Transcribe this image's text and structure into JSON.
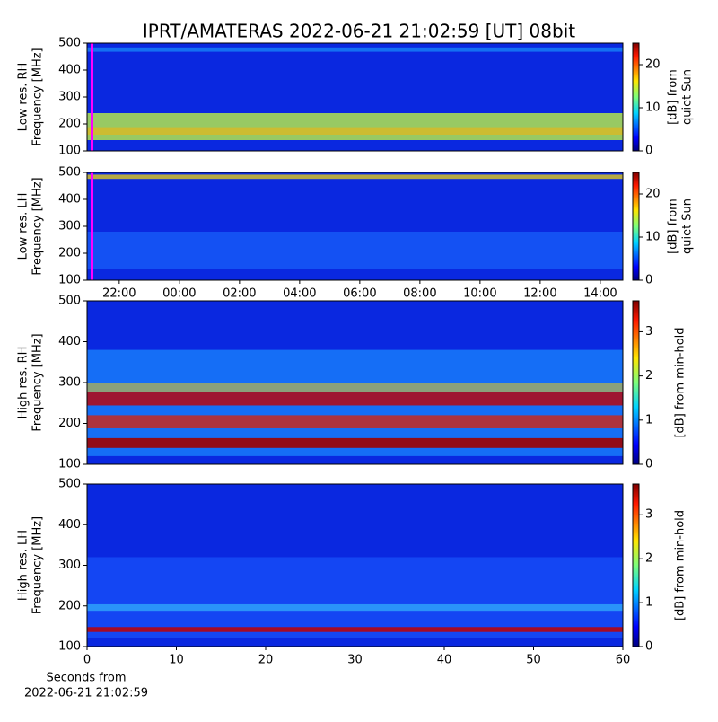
{
  "title": "IPRT/AMATERAS 2022-06-21 21:02:59 [UT]   08bit",
  "chart_data": [
    {
      "type": "spectrogram",
      "ylabel": [
        "Low res. RH",
        "Frequency [MHz]"
      ],
      "ylim": [
        100,
        500
      ],
      "yticks": [
        100,
        200,
        300,
        400,
        500
      ],
      "xlim": [
        20.93,
        38.75
      ],
      "clabel": [
        "[dB] from",
        "quiet Sun"
      ],
      "clim": [
        0,
        25
      ],
      "cticks": [
        0,
        10,
        20
      ]
    },
    {
      "type": "spectrogram",
      "ylabel": [
        "Low res. LH",
        "Frequency [MHz]"
      ],
      "ylim": [
        100,
        500
      ],
      "yticks": [
        100,
        200,
        300,
        400,
        500
      ],
      "xlim": [
        20.93,
        38.75
      ],
      "xticks": [
        {
          "value": 22,
          "label": "22:00"
        },
        {
          "value": 24,
          "label": "00:00"
        },
        {
          "value": 26,
          "label": "02:00"
        },
        {
          "value": 28,
          "label": "04:00"
        },
        {
          "value": 30,
          "label": "06:00"
        },
        {
          "value": 32,
          "label": "08:00"
        },
        {
          "value": 34,
          "label": "10:00"
        },
        {
          "value": 36,
          "label": "12:00"
        },
        {
          "value": 38,
          "label": "14:00"
        }
      ],
      "clabel": [
        "[dB] from",
        "quiet Sun"
      ],
      "clim": [
        0,
        25
      ],
      "cticks": [
        0,
        10,
        20
      ]
    },
    {
      "type": "spectrogram",
      "ylabel": [
        "High res. RH",
        "Frequency [MHz]"
      ],
      "ylim": [
        100,
        500
      ],
      "yticks": [
        100,
        200,
        300,
        400,
        500
      ],
      "xlim": [
        0,
        60
      ],
      "clabel": [
        "[dB] from min-hold"
      ],
      "clim": [
        0,
        3.7
      ],
      "cticks": [
        0,
        1,
        2,
        3
      ]
    },
    {
      "type": "spectrogram",
      "ylabel": [
        "High res. LH",
        "Frequency [MHz]"
      ],
      "ylim": [
        100,
        500
      ],
      "yticks": [
        100,
        200,
        300,
        400,
        500
      ],
      "xlim": [
        0,
        60
      ],
      "xticks": [
        0,
        10,
        20,
        30,
        40,
        50,
        60
      ],
      "xlabel": [
        "Seconds from",
        "2022-06-21 21:02:59"
      ],
      "clabel": [
        "[dB] from min-hold"
      ],
      "clim": [
        0,
        3.7
      ],
      "cticks": [
        0,
        1,
        2,
        3
      ]
    }
  ]
}
